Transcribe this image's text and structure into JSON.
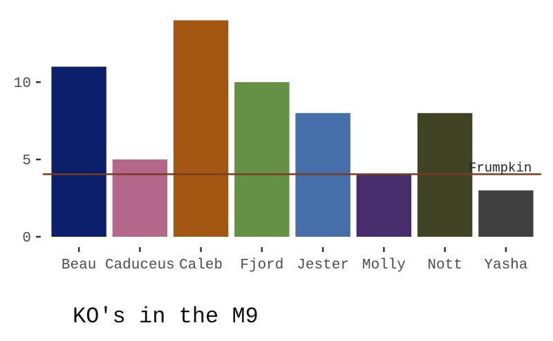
{
  "chart_data": {
    "type": "bar",
    "title": "KO's in the M9",
    "xlabel": "",
    "ylabel": "",
    "categories": [
      "Beau",
      "Caduceus",
      "Caleb",
      "Fjord",
      "Jester",
      "Molly",
      "Nott",
      "Yasha"
    ],
    "values": [
      11,
      5,
      14,
      10,
      8,
      4,
      8,
      3
    ],
    "colors": [
      "#0b1f6b",
      "#b4678a",
      "#a35512",
      "#659147",
      "#466ea8",
      "#472d6b",
      "#404424",
      "#404040"
    ],
    "ylim": [
      0,
      14.5
    ],
    "yticks": [
      0,
      5,
      10
    ],
    "grid": false,
    "reference_line": {
      "value": 4,
      "label": "Frumpkin",
      "color": "#7a3b22"
    }
  }
}
